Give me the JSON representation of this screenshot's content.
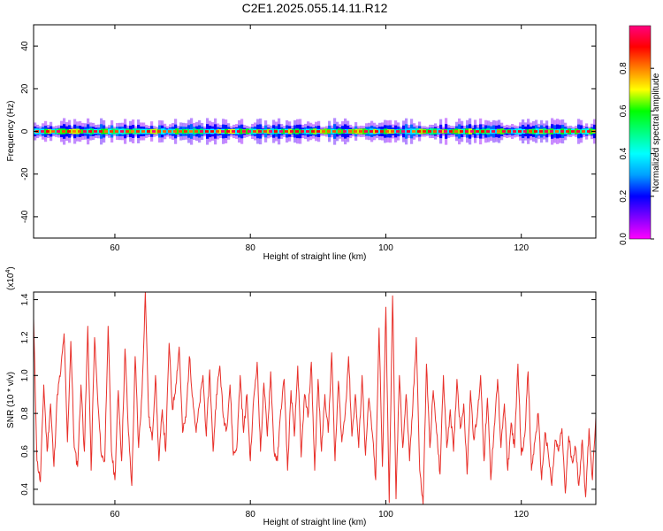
{
  "chart_data": [
    {
      "type": "heatmap",
      "title": "C2E1.2025.055.14.11.R12",
      "xlabel": "Height of straight line (km)",
      "ylabel": "Frequency (Hz)",
      "xlim": [
        48,
        131
      ],
      "ylim": [
        -50,
        50
      ],
      "xticks": [
        60,
        80,
        100,
        120
      ],
      "xtick_labels": [
        "60",
        "80",
        "100",
        "120"
      ],
      "yticks": [
        -40,
        -20,
        0,
        20,
        40
      ],
      "ytick_labels": [
        "-40",
        "-20",
        "0",
        "20",
        "40"
      ],
      "grid": false,
      "colorbar": {
        "label": "Normalized spectral amplitude",
        "range": [
          0,
          1
        ],
        "ticks": [
          0.0,
          0.2,
          0.4,
          0.6,
          0.8
        ],
        "tick_labels": [
          "0.0",
          "0.2",
          "0.4",
          "0.6",
          "0.8"
        ],
        "colormap": [
          "#ff00ff",
          "#8000ff",
          "#0000ff",
          "#00a0ff",
          "#00ffff",
          "#00ff80",
          "#00ff00",
          "#ffff00",
          "#ff8000",
          "#ff0000",
          "#ff0080"
        ]
      },
      "band": {
        "center_hz": 0,
        "core_halfwidth_hz": 1,
        "outer_halfwidth_hz": 3.5
      }
    },
    {
      "type": "line",
      "xlabel": "Height of straight line (km)",
      "ylabel": "SNR (10 * v/v)",
      "multiplier_label_base": "(x10",
      "multiplier_label_exp": "4",
      "multiplier_label_close": ")",
      "xlim": [
        48,
        131
      ],
      "ylim": [
        0.32,
        1.44
      ],
      "xticks": [
        60,
        80,
        100,
        120
      ],
      "xtick_labels": [
        "60",
        "80",
        "100",
        "120"
      ],
      "yticks": [
        0.4,
        0.6,
        0.8,
        1.0,
        1.2,
        1.4
      ],
      "ytick_labels": [
        "0.4",
        "0.6",
        "0.8",
        "1.0",
        "1.2",
        "1.4"
      ],
      "grid": false,
      "series": [
        {
          "color": "#e8302a",
          "x": [
            48,
            48.5,
            49,
            49.5,
            50,
            50.5,
            51,
            51.5,
            52,
            52.5,
            53,
            53.5,
            54,
            54.5,
            55,
            55.5,
            56,
            56.5,
            57,
            57.5,
            58,
            58.5,
            59,
            59.5,
            60,
            60.5,
            61,
            61.5,
            62,
            62.5,
            63,
            63.5,
            64,
            64.5,
            65,
            65.5,
            66,
            66.5,
            67,
            67.5,
            68,
            68.5,
            69,
            69.5,
            70,
            70.5,
            71,
            71.5,
            72,
            72.5,
            73,
            73.5,
            74,
            74.5,
            75,
            75.5,
            76,
            76.5,
            77,
            77.5,
            78,
            78.5,
            79,
            79.5,
            80,
            80.5,
            81,
            81.5,
            82,
            82.5,
            83,
            83.5,
            84,
            84.5,
            85,
            85.5,
            86,
            86.5,
            87,
            87.5,
            88,
            88.5,
            89,
            89.5,
            90,
            90.5,
            91,
            91.5,
            92,
            92.5,
            93,
            93.5,
            94,
            94.5,
            95,
            95.5,
            96,
            96.5,
            97,
            97.5,
            98,
            98.5,
            99,
            99.5,
            100,
            100.5,
            101,
            101.5,
            102,
            102.5,
            103,
            103.5,
            104,
            104.5,
            105,
            105.5,
            106,
            106.5,
            107,
            107.5,
            108,
            108.5,
            109,
            109.5,
            110,
            110.5,
            111,
            111.5,
            112,
            112.5,
            113,
            113.5,
            114,
            114.5,
            115,
            115.5,
            116,
            116.5,
            117,
            117.5,
            118,
            118.5,
            119,
            119.5,
            120,
            120.5,
            121,
            121.5,
            122,
            122.5,
            123,
            123.5,
            124,
            124.5,
            125,
            125.5,
            126,
            126.5,
            127,
            127.5,
            128,
            128.5,
            129,
            129.5,
            130,
            130.5,
            131
          ],
          "y": [
            1.3,
            0.55,
            0.44,
            0.95,
            0.6,
            0.85,
            0.52,
            0.9,
            1.02,
            1.22,
            0.65,
            1.18,
            0.62,
            0.52,
            0.95,
            0.6,
            1.26,
            0.5,
            1.2,
            0.85,
            0.58,
            0.55,
            1.26,
            0.6,
            0.45,
            0.92,
            0.55,
            1.14,
            0.7,
            0.42,
            1.1,
            0.62,
            0.9,
            1.44,
            0.78,
            0.66,
            1.0,
            0.55,
            0.82,
            0.6,
            1.17,
            0.82,
            0.95,
            1.15,
            0.7,
            0.78,
            1.1,
            0.88,
            0.7,
            0.85,
            1.0,
            0.68,
            1.03,
            0.6,
            0.9,
            1.05,
            0.78,
            0.72,
            0.95,
            0.58,
            0.62,
            1.0,
            0.7,
            0.9,
            0.55,
            0.88,
            1.07,
            0.6,
            0.96,
            0.68,
            1.02,
            0.6,
            0.55,
            0.82,
            0.98,
            0.5,
            0.92,
            0.68,
            1.05,
            0.57,
            0.9,
            0.78,
            1.07,
            0.5,
            0.98,
            0.6,
            0.9,
            0.7,
            1.12,
            0.55,
            0.97,
            0.65,
            0.8,
            1.1,
            0.68,
            0.9,
            0.62,
            1.0,
            0.58,
            0.88,
            0.7,
            0.45,
            1.25,
            0.52,
            1.36,
            0.33,
            1.42,
            0.35,
            1.0,
            0.62,
            0.9,
            0.55,
            0.85,
            1.2,
            0.5,
            0.32,
            1.06,
            0.62,
            0.92,
            0.7,
            0.48,
            1.0,
            0.62,
            0.82,
            0.6,
            0.98,
            0.72,
            0.85,
            0.48,
            0.92,
            0.66,
            0.78,
            1.0,
            0.55,
            0.88,
            0.45,
            0.73,
            0.98,
            0.62,
            0.85,
            0.5,
            0.75,
            0.62,
            1.06,
            0.58,
            0.68,
            1.02,
            0.5,
            0.65,
            0.8,
            0.45,
            0.7,
            0.58,
            0.42,
            0.66,
            0.6,
            0.72,
            0.38,
            0.68,
            0.55,
            0.62,
            0.42,
            0.66,
            0.36,
            0.72,
            0.45,
            0.78
          ]
        }
      ]
    }
  ]
}
